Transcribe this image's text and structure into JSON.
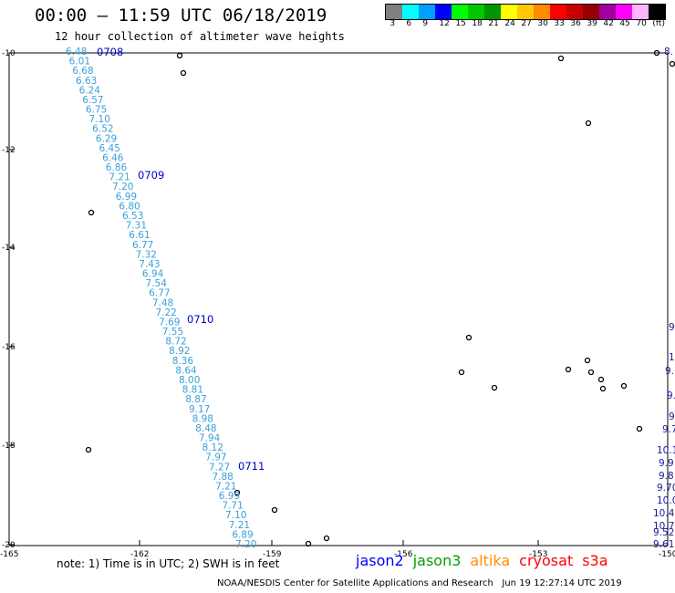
{
  "title": "00:00 – 11:59 UTC 06/18/2019",
  "subtitle": "12 hour collection of altimeter wave heights",
  "colorbar": {
    "colors": [
      "#7f7f7f",
      "#00ffff",
      "#00a0ff",
      "#0000ff",
      "#00ff00",
      "#00c800",
      "#009600",
      "#ffff00",
      "#ffc800",
      "#ff8c00",
      "#ff0000",
      "#c80000",
      "#960000",
      "#a000a0",
      "#ff00ff",
      "#ffb4ff",
      "#000000"
    ],
    "labels": [
      "3",
      "6",
      "9",
      "12",
      "15",
      "18",
      "21",
      "24",
      "27",
      "30",
      "33",
      "36",
      "39",
      "42",
      "45",
      "70",
      "(ft)"
    ]
  },
  "axes": {
    "lat_labels": [
      "-10",
      "-12",
      "-14",
      "-16",
      "-18",
      "-20"
    ],
    "lon_labels": [
      "-165",
      "-162",
      "-159",
      "-156",
      "-153",
      "-150"
    ]
  },
  "track_jason3": {
    "color": "#3aa0d8",
    "values": [
      "6.48",
      "6.01",
      "6.68",
      "6.63",
      "6.24",
      "6.57",
      "6.75",
      "7.10",
      "6.52",
      "6.29",
      "6.45",
      "6.46",
      "6.86",
      "7.21",
      "7.20",
      "6.99",
      "6.80",
      "6.53",
      "7.31",
      "6.61",
      "6.77",
      "7.32",
      "7.43",
      "6.94",
      "7.54",
      "6.77",
      "7.48",
      "7.22",
      "7.69",
      "7.55",
      "8.72",
      "8.92",
      "8.36",
      "8.64",
      "8.00",
      "8.81",
      "8.87",
      "9.17",
      "8.98",
      "8.48",
      "7.94",
      "8.12",
      "7.97",
      "7.27",
      "7.88",
      "7.21",
      "6.99",
      "7.71",
      "7.10",
      "7.21",
      "6.89",
      "7.20"
    ],
    "time_labels": [
      "0708",
      "0709",
      "0710",
      "0711"
    ]
  },
  "track_right": {
    "color": "#1a1aa0",
    "values": [
      "8.",
      "9",
      "10",
      "9.",
      "9.",
      "9.",
      "9.7",
      "10.1",
      "9.9",
      "9.8",
      "9.70",
      "10.06",
      "10.47",
      "10.79",
      "9.52",
      "9.61"
    ]
  },
  "footer": {
    "note": "note:  1) Time is in UTC;  2) SWH is in feet",
    "satellites": [
      {
        "name": "jason2",
        "color": "#0000ff"
      },
      {
        "name": "jason3",
        "color": "#00a000"
      },
      {
        "name": "altika",
        "color": "#ff8c00"
      },
      {
        "name": "cryosat",
        "color": "#ff0000"
      },
      {
        "name": "s3a",
        "color": "#ff0000"
      }
    ],
    "credit": "NOAA/NESDIS Center for Satellite Applications and Research   Jun 19 12:27:14 UTC 2019"
  }
}
